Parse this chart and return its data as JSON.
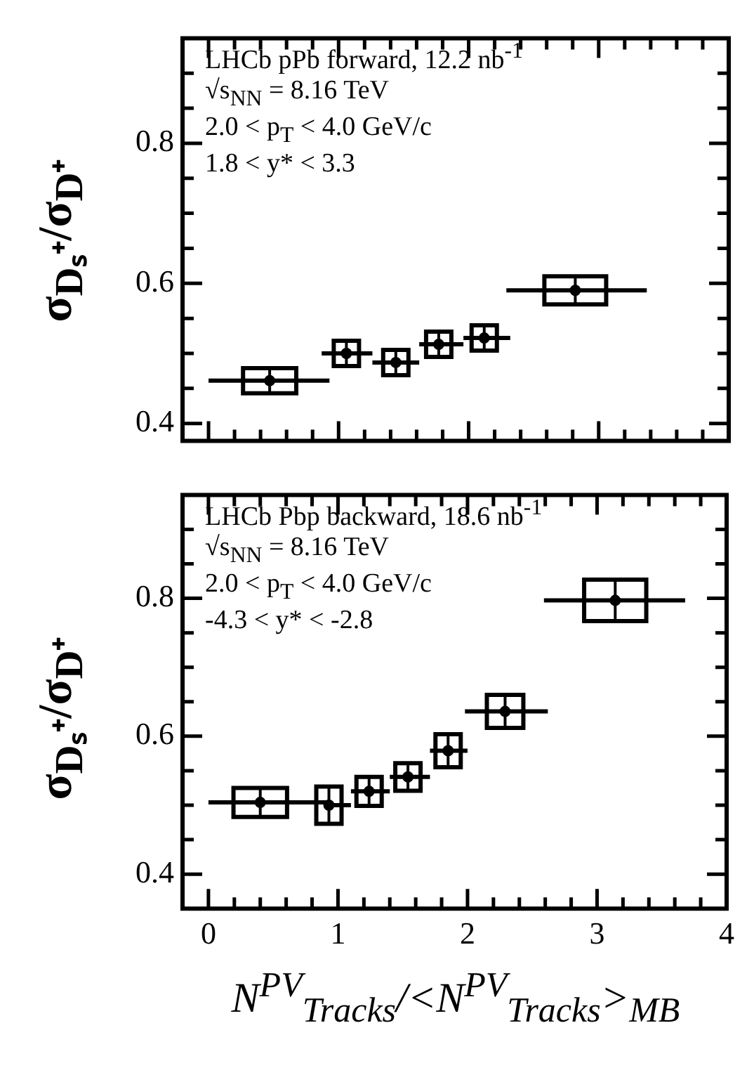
{
  "chart_data": [
    {
      "type": "scatter",
      "marker": "circle",
      "tick_labels": "y",
      "ylabel": "σ$_{Dₛ⁺}$/σ$_{D⁺}$",
      "annotations": [
        "LHCb pPb forward, 12.2 nb$^{-1}$",
        "√s$_{NN}$ = 8.16 TeV",
        "2.0 < p$_{T}$ < 4.0 GeV/c",
        "1.8 < y* < 3.3"
      ],
      "xlim": [
        -0.2,
        4.0
      ],
      "ylim": [
        0.375,
        0.95
      ],
      "xticks": [
        0,
        {
          "value": 0.2,
          "label": null
        },
        {
          "value": 0.4,
          "label": null
        },
        {
          "value": 0.6,
          "label": null
        },
        {
          "value": 0.8,
          "label": null
        },
        1,
        {
          "value": 1.2,
          "label": null
        },
        {
          "value": 1.4,
          "label": null
        },
        {
          "value": 1.6,
          "label": null
        },
        {
          "value": 1.8,
          "label": null
        },
        2,
        {
          "value": 2.2,
          "label": null
        },
        {
          "value": 2.4,
          "label": null
        },
        {
          "value": 2.6,
          "label": null
        },
        {
          "value": 2.8,
          "label": null
        },
        3,
        {
          "value": 3.2,
          "label": null
        },
        {
          "value": 3.4,
          "label": null
        },
        {
          "value": 3.6,
          "label": null
        },
        {
          "value": 3.8,
          "label": null
        },
        4
      ],
      "yticks": [
        0.4,
        {
          "value": 0.45,
          "label": null
        },
        {
          "value": 0.5,
          "label": null
        },
        {
          "value": 0.55,
          "label": null
        },
        0.6,
        {
          "value": 0.65,
          "label": null
        },
        {
          "value": 0.7,
          "label": null
        },
        {
          "value": 0.75,
          "label": null
        },
        0.8,
        {
          "value": 0.85,
          "label": null
        },
        {
          "value": 0.9,
          "label": null
        }
      ],
      "series": [
        {
          "color": "#000000",
          "x": [
            0.47,
            1.06,
            1.44,
            1.77,
            2.12,
            2.82
          ],
          "values": [
            0.461,
            0.5,
            0.487,
            0.513,
            0.522,
            0.59
          ],
          "errors": [
            0.018,
            0.018,
            0.018,
            0.018,
            0.018,
            0.02
          ],
          "xerrors": [
            [
              0.0,
              0.93
            ],
            [
              0.87,
              1.26
            ],
            [
              1.26,
              1.62
            ],
            [
              1.62,
              1.96
            ],
            [
              1.96,
              2.32
            ],
            [
              2.29,
              3.37
            ]
          ]
        }
      ]
    },
    {
      "type": "scatter",
      "marker": "circle",
      "ylabel": "σ$_{Dₛ⁺}$/σ$_{D⁺}$",
      "xlabel": "N$^{PV}$$_{Tracks}$/<N$^{PV}$$_{Tracks}$>$_{MB}$",
      "annotations": [
        "LHCb Pbp backward, 18.6 nb$^{-1}$",
        "√s$_{NN}$ = 8.16 TeV",
        "2.0 < p$_{T}$ < 4.0 GeV/c",
        "-4.3 < y* < -2.8"
      ],
      "xlim": [
        -0.2,
        4.0
      ],
      "ylim": [
        0.35,
        0.95
      ],
      "xticks": [
        0,
        {
          "value": 0.2,
          "label": null
        },
        {
          "value": 0.4,
          "label": null
        },
        {
          "value": 0.6,
          "label": null
        },
        {
          "value": 0.8,
          "label": null
        },
        1,
        {
          "value": 1.2,
          "label": null
        },
        {
          "value": 1.4,
          "label": null
        },
        {
          "value": 1.6,
          "label": null
        },
        {
          "value": 1.8,
          "label": null
        },
        2,
        {
          "value": 2.2,
          "label": null
        },
        {
          "value": 2.4,
          "label": null
        },
        {
          "value": 2.6,
          "label": null
        },
        {
          "value": 2.8,
          "label": null
        },
        3,
        {
          "value": 3.2,
          "label": null
        },
        {
          "value": 3.4,
          "label": null
        },
        {
          "value": 3.6,
          "label": null
        },
        {
          "value": 3.8,
          "label": null
        },
        4
      ],
      "yticks": [
        0.4,
        {
          "value": 0.45,
          "label": null
        },
        {
          "value": 0.5,
          "label": null
        },
        {
          "value": 0.55,
          "label": null
        },
        0.6,
        {
          "value": 0.65,
          "label": null
        },
        {
          "value": 0.7,
          "label": null
        },
        {
          "value": 0.75,
          "label": null
        },
        0.8,
        {
          "value": 0.85,
          "label": null
        },
        {
          "value": 0.9,
          "label": null
        }
      ],
      "series": [
        {
          "color": "#000000",
          "x": [
            0.4,
            0.93,
            1.24,
            1.54,
            1.85,
            2.29,
            3.14
          ],
          "values": [
            0.504,
            0.5,
            0.52,
            0.541,
            0.579,
            0.636,
            0.797
          ],
          "errors": [
            0.021,
            0.027,
            0.021,
            0.02,
            0.024,
            0.024,
            0.03
          ],
          "xerrors": [
            [
              0.0,
              0.94
            ],
            [
              0.94,
              1.1
            ],
            [
              1.1,
              1.4
            ],
            [
              1.4,
              1.71
            ],
            [
              1.71,
              2.0
            ],
            [
              1.98,
              2.62
            ],
            [
              2.59,
              3.68
            ]
          ]
        }
      ]
    }
  ]
}
